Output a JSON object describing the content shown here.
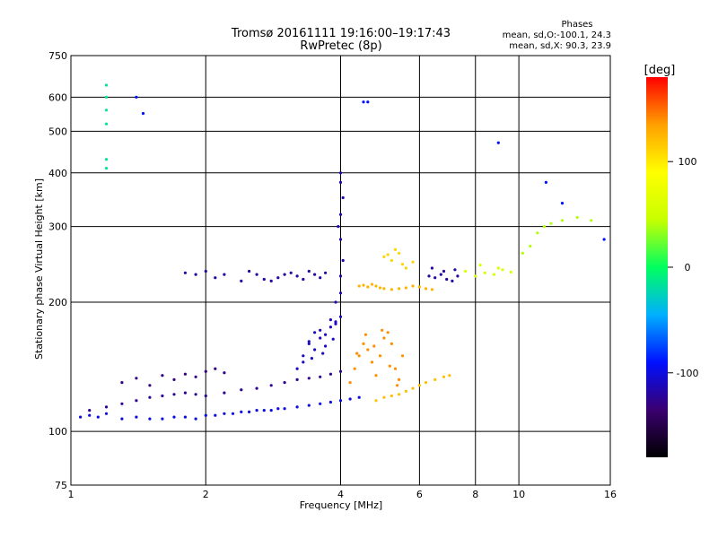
{
  "chart_data": {
    "type": "scatter",
    "title": "Tromsø 20161111 19:16:00–19:17:43",
    "subtitle": "RwPretec (8p)",
    "xlabel": "Frequency [MHz]",
    "ylabel": "Stationary phase Virtual Height [km]",
    "x_scale": "log",
    "y_scale": "log",
    "xlim": [
      1,
      16
    ],
    "ylim": [
      75,
      750
    ],
    "x_ticks": [
      1,
      2,
      4,
      6,
      8,
      10,
      16
    ],
    "y_ticks": [
      75,
      100,
      200,
      300,
      400,
      500,
      600,
      750
    ],
    "grid": true,
    "phase_legend": {
      "heading": "Phases",
      "line_o": "mean, sd,O:-100.1, 24.3",
      "line_x": "mean, sd,X: 90.3, 23.9"
    },
    "colorbar": {
      "label": "[deg]",
      "ticks": [
        100,
        0,
        -100
      ],
      "range": [
        -180,
        180
      ],
      "colors": [
        "#000000",
        "#3a0070",
        "#0010ff",
        "#00b0ff",
        "#00ff60",
        "#c8ff00",
        "#ffff00",
        "#ffa000",
        "#ff0000"
      ]
    },
    "series": [
      {
        "x": [
          1.05,
          1.1,
          1.15,
          1.2,
          1.3,
          1.4,
          1.5,
          1.6,
          1.7,
          1.8,
          1.9,
          2.0,
          2.1,
          2.2,
          2.3,
          2.4,
          2.5,
          2.6,
          2.7,
          2.8,
          2.9,
          3.0,
          3.2,
          3.4,
          3.6,
          3.8,
          4.0,
          4.2,
          4.4
        ],
        "y": [
          108,
          109,
          108,
          110,
          107,
          108,
          107,
          107,
          108,
          108,
          107,
          109,
          109,
          110,
          110,
          111,
          111,
          112,
          112,
          112,
          113,
          113,
          114,
          115,
          116,
          117,
          118,
          119,
          120
        ],
        "phase": -100
      },
      {
        "x": [
          1.1,
          1.2,
          1.3,
          1.4,
          1.5,
          1.6,
          1.7,
          1.8,
          1.9,
          2.0,
          2.2,
          2.4,
          2.6,
          2.8,
          3.0,
          3.2,
          3.4,
          3.6,
          3.8,
          4.0
        ],
        "y": [
          112,
          114,
          116,
          118,
          120,
          121,
          122,
          123,
          122,
          121,
          123,
          125,
          126,
          128,
          130,
          132,
          133,
          134,
          136,
          138
        ],
        "phase": -125
      },
      {
        "x": [
          1.3,
          1.4,
          1.5,
          1.6,
          1.7,
          1.8,
          1.9,
          2.0,
          2.1,
          2.2
        ],
        "y": [
          130,
          133,
          128,
          135,
          132,
          136,
          134,
          138,
          140,
          137
        ],
        "phase": -130
      },
      {
        "x": [
          3.2,
          3.3,
          3.4,
          3.5,
          3.6,
          3.7,
          3.8,
          3.9,
          4.0,
          3.3,
          3.5,
          3.7,
          3.9,
          3.4,
          3.6,
          3.8,
          3.45,
          3.65,
          3.85
        ],
        "y": [
          140,
          150,
          160,
          170,
          165,
          158,
          175,
          180,
          185,
          145,
          155,
          168,
          178,
          162,
          172,
          182,
          148,
          152,
          164
        ],
        "phase": -110
      },
      {
        "x": [
          3.9,
          4.0,
          4.0,
          4.05,
          4.0,
          3.95,
          4.0,
          4.05,
          4.0,
          4.0
        ],
        "y": [
          200,
          210,
          230,
          250,
          280,
          300,
          320,
          350,
          380,
          400
        ],
        "phase": -115
      },
      {
        "x": [
          1.8,
          1.9,
          2.0,
          2.1,
          2.2,
          2.4,
          2.5,
          2.6,
          2.7,
          2.8,
          2.9,
          3.0,
          3.1,
          3.2,
          3.3,
          3.4,
          3.5,
          3.6,
          3.7
        ],
        "y": [
          234,
          232,
          236,
          228,
          232,
          224,
          236,
          232,
          226,
          224,
          228,
          232,
          234,
          230,
          226,
          236,
          232,
          228,
          234
        ],
        "phase": -120
      },
      {
        "x": [
          4.4,
          4.5,
          4.6,
          4.7,
          4.8,
          4.9,
          5.0,
          5.2,
          5.4,
          5.6,
          5.8,
          6.0,
          6.2,
          6.4
        ],
        "y": [
          218,
          219,
          217,
          220,
          218,
          216,
          215,
          214,
          215,
          216,
          218,
          217,
          215,
          214
        ],
        "phase": 125
      },
      {
        "x": [
          4.2,
          4.3,
          4.4,
          4.5,
          4.6,
          4.7,
          4.8,
          4.9,
          5.0,
          5.1,
          5.2,
          5.3,
          5.4,
          5.5,
          4.35,
          4.55,
          4.75,
          4.95,
          5.15,
          5.35
        ],
        "y": [
          130,
          140,
          150,
          160,
          155,
          145,
          135,
          150,
          165,
          170,
          160,
          140,
          132,
          150,
          152,
          168,
          158,
          172,
          142,
          128
        ],
        "phase": 140
      },
      {
        "x": [
          4.8,
          5.0,
          5.2,
          5.4,
          5.6,
          5.8,
          6.0,
          6.2,
          6.5,
          6.8,
          7.0
        ],
        "y": [
          118,
          120,
          121,
          122,
          124,
          126,
          128,
          130,
          132,
          134,
          135
        ],
        "phase": 120
      },
      {
        "x": [
          5.0,
          5.2,
          5.4,
          5.5,
          5.6,
          5.8,
          5.3,
          5.1
        ],
        "y": [
          255,
          250,
          260,
          245,
          240,
          248,
          265,
          258
        ],
        "phase": 110
      },
      {
        "x": [
          6.3,
          6.5,
          6.7,
          6.9,
          7.1,
          7.3,
          6.4,
          6.8,
          7.2
        ],
        "y": [
          230,
          228,
          232,
          226,
          224,
          230,
          240,
          236,
          238
        ],
        "phase": -120
      },
      {
        "x": [
          7.6,
          8.0,
          8.4,
          8.8,
          9.2,
          9.6,
          8.2,
          9.0
        ],
        "y": [
          236,
          230,
          234,
          232,
          238,
          235,
          244,
          240
        ],
        "phase": 60
      },
      {
        "x": [
          10.2,
          10.6,
          11.0,
          11.4,
          11.8,
          12.5,
          13.5,
          14.5
        ],
        "y": [
          260,
          270,
          290,
          300,
          305,
          310,
          315,
          310
        ],
        "phase": 40
      },
      {
        "x": [
          1.2,
          1.2,
          1.2,
          1.2,
          1.2,
          1.2
        ],
        "y": [
          640,
          600,
          560,
          520,
          430,
          410
        ],
        "phase": -15
      },
      {
        "x": [
          1.4,
          1.45,
          4.5,
          4.6,
          9.0,
          11.5,
          12.5,
          15.5
        ],
        "y": [
          600,
          550,
          585,
          585,
          470,
          380,
          340,
          280
        ],
        "phase": -90
      }
    ]
  }
}
